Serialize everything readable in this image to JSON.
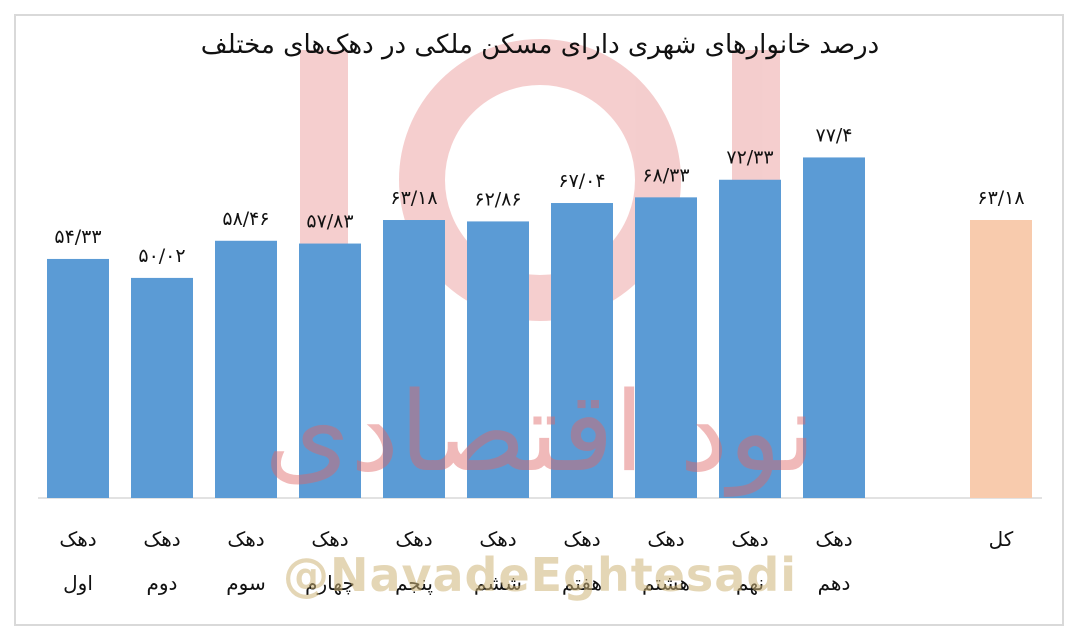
{
  "chart_data": {
    "type": "bar",
    "title": "درصد خانوارهای شهری دارای مسکن ملکی در دهک‌های مختلف",
    "xlabel": "",
    "ylabel": "",
    "ylim": [
      0,
      100
    ],
    "grid": false,
    "legend": "none",
    "categories": [
      [
        "دهک",
        "اول"
      ],
      [
        "دهک",
        "دوم"
      ],
      [
        "دهک",
        "سوم"
      ],
      [
        "دهک",
        "چهارم"
      ],
      [
        "دهک",
        "پنجم"
      ],
      [
        "دهک",
        "ششم"
      ],
      [
        "دهک",
        "هفتم"
      ],
      [
        "دهک",
        "هشتم"
      ],
      [
        "دهک",
        "نهم"
      ],
      [
        "دهک",
        "دهم"
      ],
      [
        "کل"
      ]
    ],
    "values": [
      54.33,
      50.02,
      58.46,
      57.83,
      63.18,
      62.86,
      67.04,
      68.33,
      72.33,
      77.4,
      63.18
    ],
    "data_labels": [
      "۵۴/۳۳",
      "۵۰/۰۲",
      "۵۸/۴۶",
      "۵۷/۸۳",
      "۶۳/۱۸",
      "۶۲/۸۶",
      "۶۷/۰۴",
      "۶۸/۳۳",
      "۷۲/۳۳",
      "۷۷/۴",
      "۶۳/۱۸"
    ],
    "colors": {
      "decile_bar": "#5b9bd5",
      "total_bar": "#f8cbad",
      "axis": "#d9d9d9",
      "label": "#111111"
    }
  },
  "watermark": {
    "brand_text": "نود اقتصادی",
    "handle": "@NavadeEghtesadi",
    "color": "#e06666"
  }
}
